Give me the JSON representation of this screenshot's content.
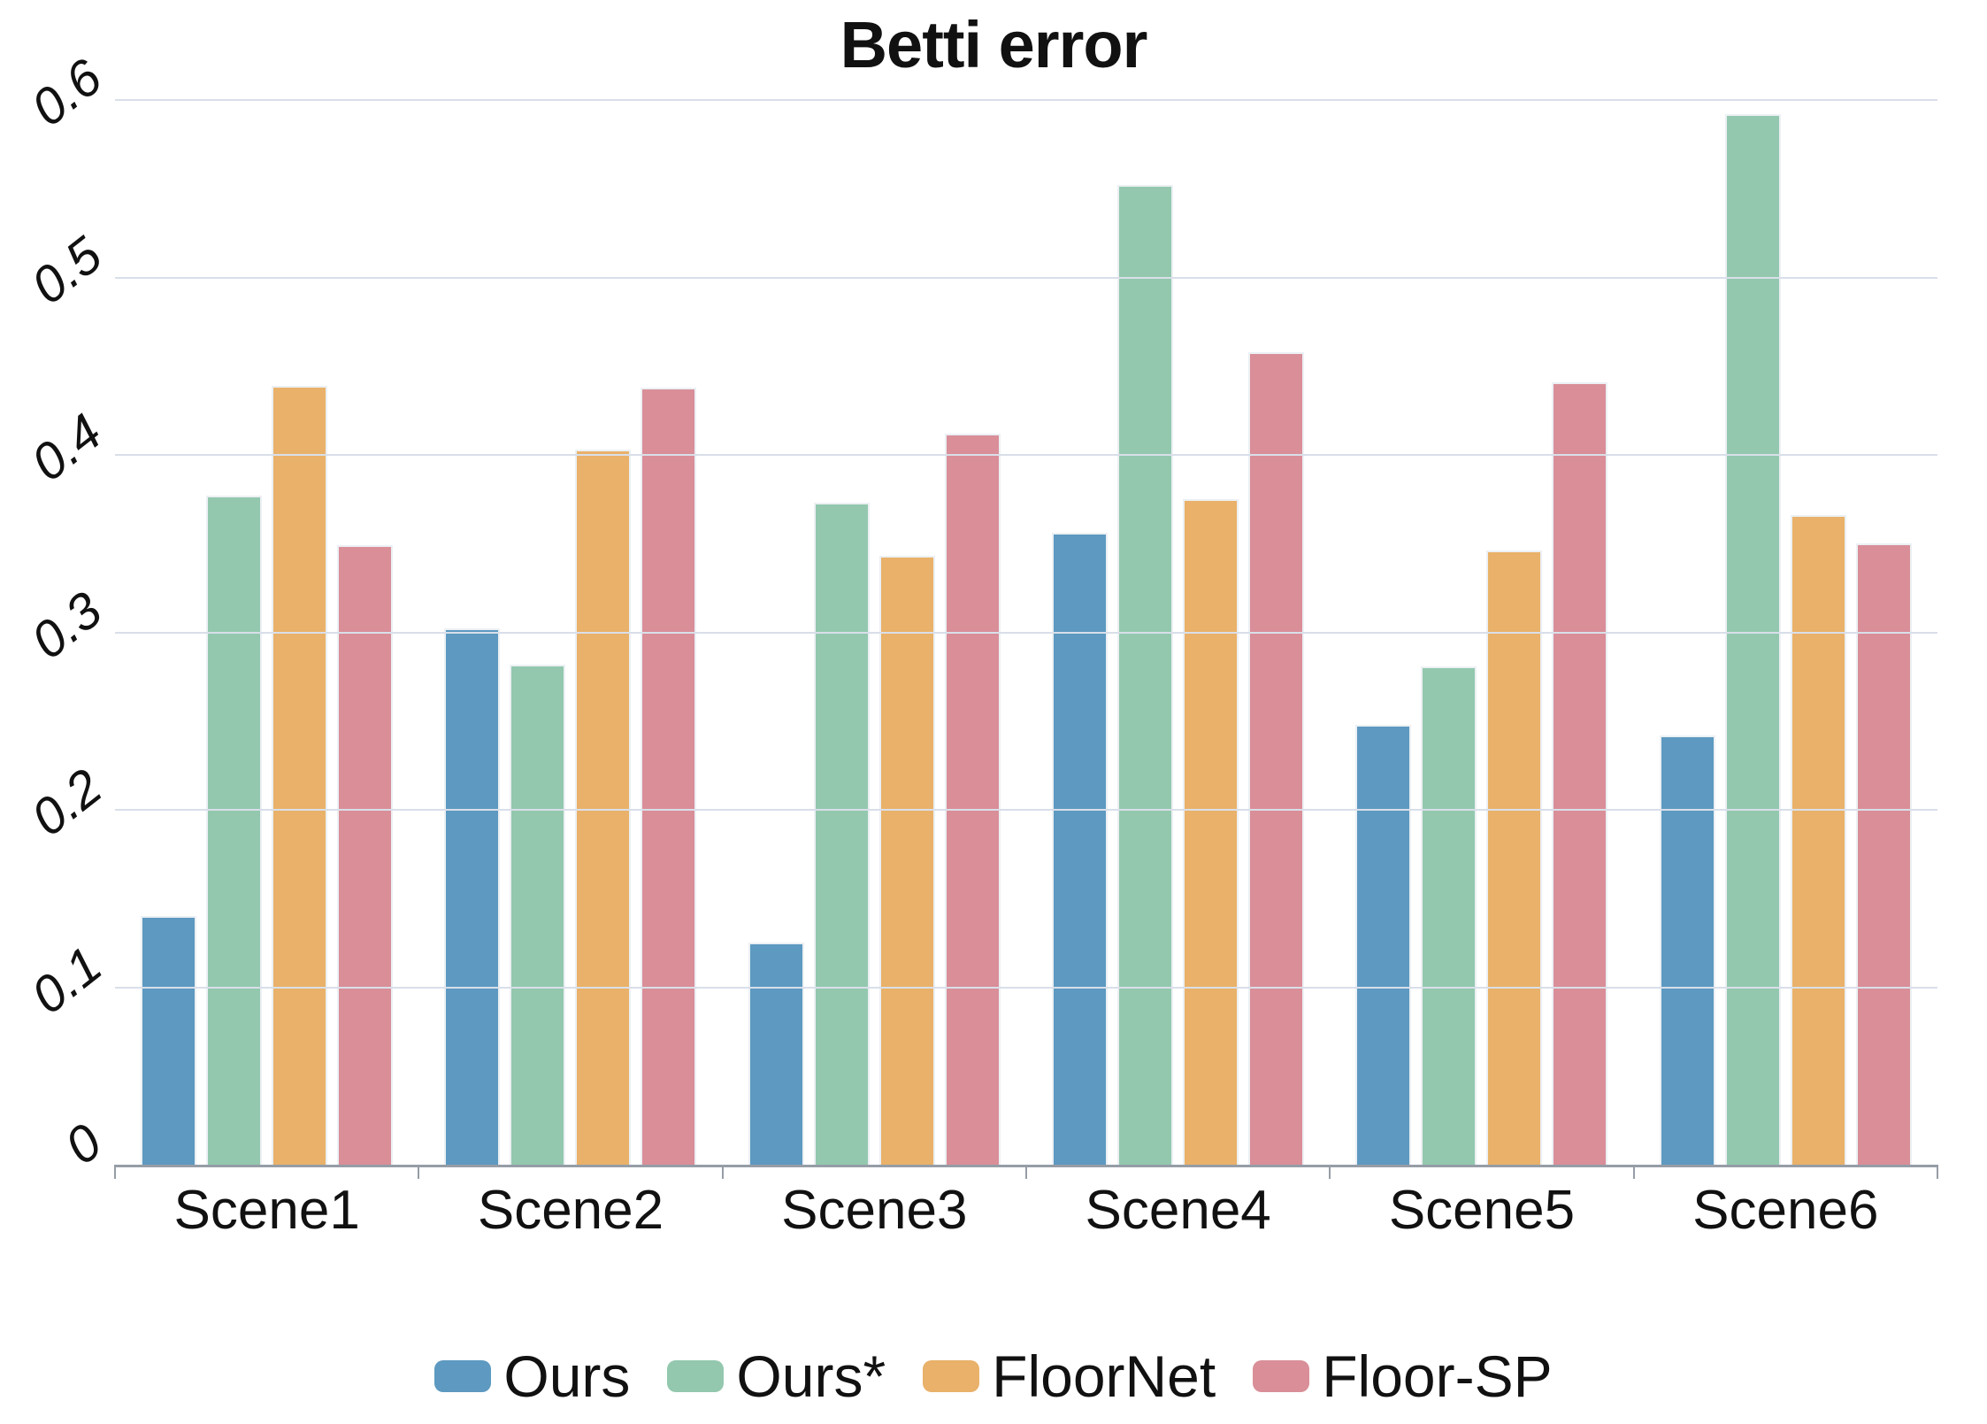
{
  "title": "Betti error",
  "chart_data": {
    "type": "bar",
    "title": "Betti error",
    "categories": [
      "Scene1",
      "Scene2",
      "Scene3",
      "Scene4",
      "Scene5",
      "Scene6"
    ],
    "series": [
      {
        "name": "Ours",
        "color": "#5d99c0",
        "values": [
          0.14,
          0.302,
          0.125,
          0.356,
          0.248,
          0.242
        ]
      },
      {
        "name": "Ours*",
        "color": "#93c8ae",
        "values": [
          0.377,
          0.282,
          0.373,
          0.552,
          0.281,
          0.592
        ]
      },
      {
        "name": "FloorNet",
        "color": "#e9b169",
        "values": [
          0.439,
          0.403,
          0.343,
          0.375,
          0.346,
          0.366
        ]
      },
      {
        "name": "Floor-SP",
        "color": "#d98e98",
        "values": [
          0.349,
          0.438,
          0.412,
          0.458,
          0.441,
          0.35
        ]
      }
    ],
    "xlabel": "",
    "ylabel": "",
    "ylim": [
      0,
      0.6
    ],
    "ytick_step": 0.1,
    "ytick_labels": [
      "0",
      "0.1",
      "0.2",
      "0.3",
      "0.4",
      "0.5",
      "0.6"
    ],
    "grid": true,
    "legend_position": "bottom",
    "colors": {
      "gridline": "#d9dfe9",
      "axis": "#969da6",
      "text": "#111111",
      "background": "#ffffff"
    }
  }
}
